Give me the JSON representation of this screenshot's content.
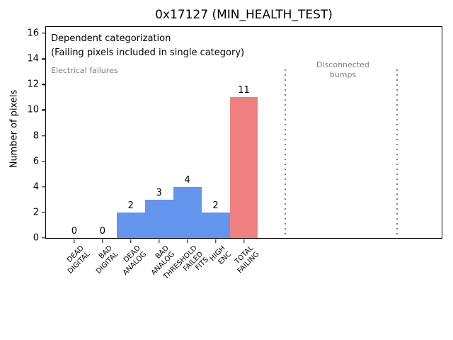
{
  "chart_data": {
    "type": "bar",
    "title": "0x17127 (MIN_HEALTH_TEST)",
    "ylabel": "Number of pixels",
    "xlabel": "",
    "categories": [
      "DEAD\nDIGITAL",
      "BAD\nDIGITAL",
      "DEAD\nANALOG",
      "BAD\nANALOG",
      "THRESHOLD\nFAILED\nFITS",
      "HIGH\nENC",
      "TOTAL\nFAILING"
    ],
    "values": [
      0,
      0,
      2,
      3,
      4,
      2,
      11
    ],
    "bar_colors": [
      "#6495ed",
      "#6495ed",
      "#6495ed",
      "#6495ed",
      "#6495ed",
      "#6495ed",
      "#f08080"
    ],
    "bar_width": 1.0,
    "yticks": [
      0,
      2,
      4,
      6,
      8,
      10,
      12,
      14,
      16
    ],
    "ylim": [
      0,
      16.5
    ],
    "xlim": [
      -1,
      13
    ],
    "grid": false,
    "legend": "none",
    "annotations": [
      {
        "name": "annotation-dependent-categorization",
        "text": "Dependent categorization",
        "xf": 0.0126,
        "yf": 0.028,
        "color": "#000000",
        "size": 13,
        "align": "left"
      },
      {
        "name": "annotation-single-category-note",
        "text": "(Failing pixels included in single category)",
        "xf": 0.0126,
        "yf": 0.094,
        "color": "#000000",
        "size": 13,
        "align": "left"
      },
      {
        "name": "annotation-electrical-failures",
        "text": "Electrical failures",
        "xf": 0.0126,
        "yf": 0.181,
        "color": "#7f7f7f",
        "size": 11,
        "align": "left"
      },
      {
        "name": "annotation-disconnected-bumps",
        "text": "Disconnected\nbumps",
        "xf": 0.7504,
        "yf": 0.158,
        "color": "#7f7f7f",
        "size": 11,
        "align": "center"
      }
    ],
    "vlines": {
      "x": [
        7.47,
        11.42
      ],
      "top_fraction": 0.2,
      "style": "dotted",
      "color": "#7f7f7f"
    }
  },
  "colors": {
    "bar_blue": "#6495ed",
    "bar_red": "#f08080",
    "gray_text": "#7f7f7f",
    "axis": "#000000",
    "background": "#ffffff"
  }
}
